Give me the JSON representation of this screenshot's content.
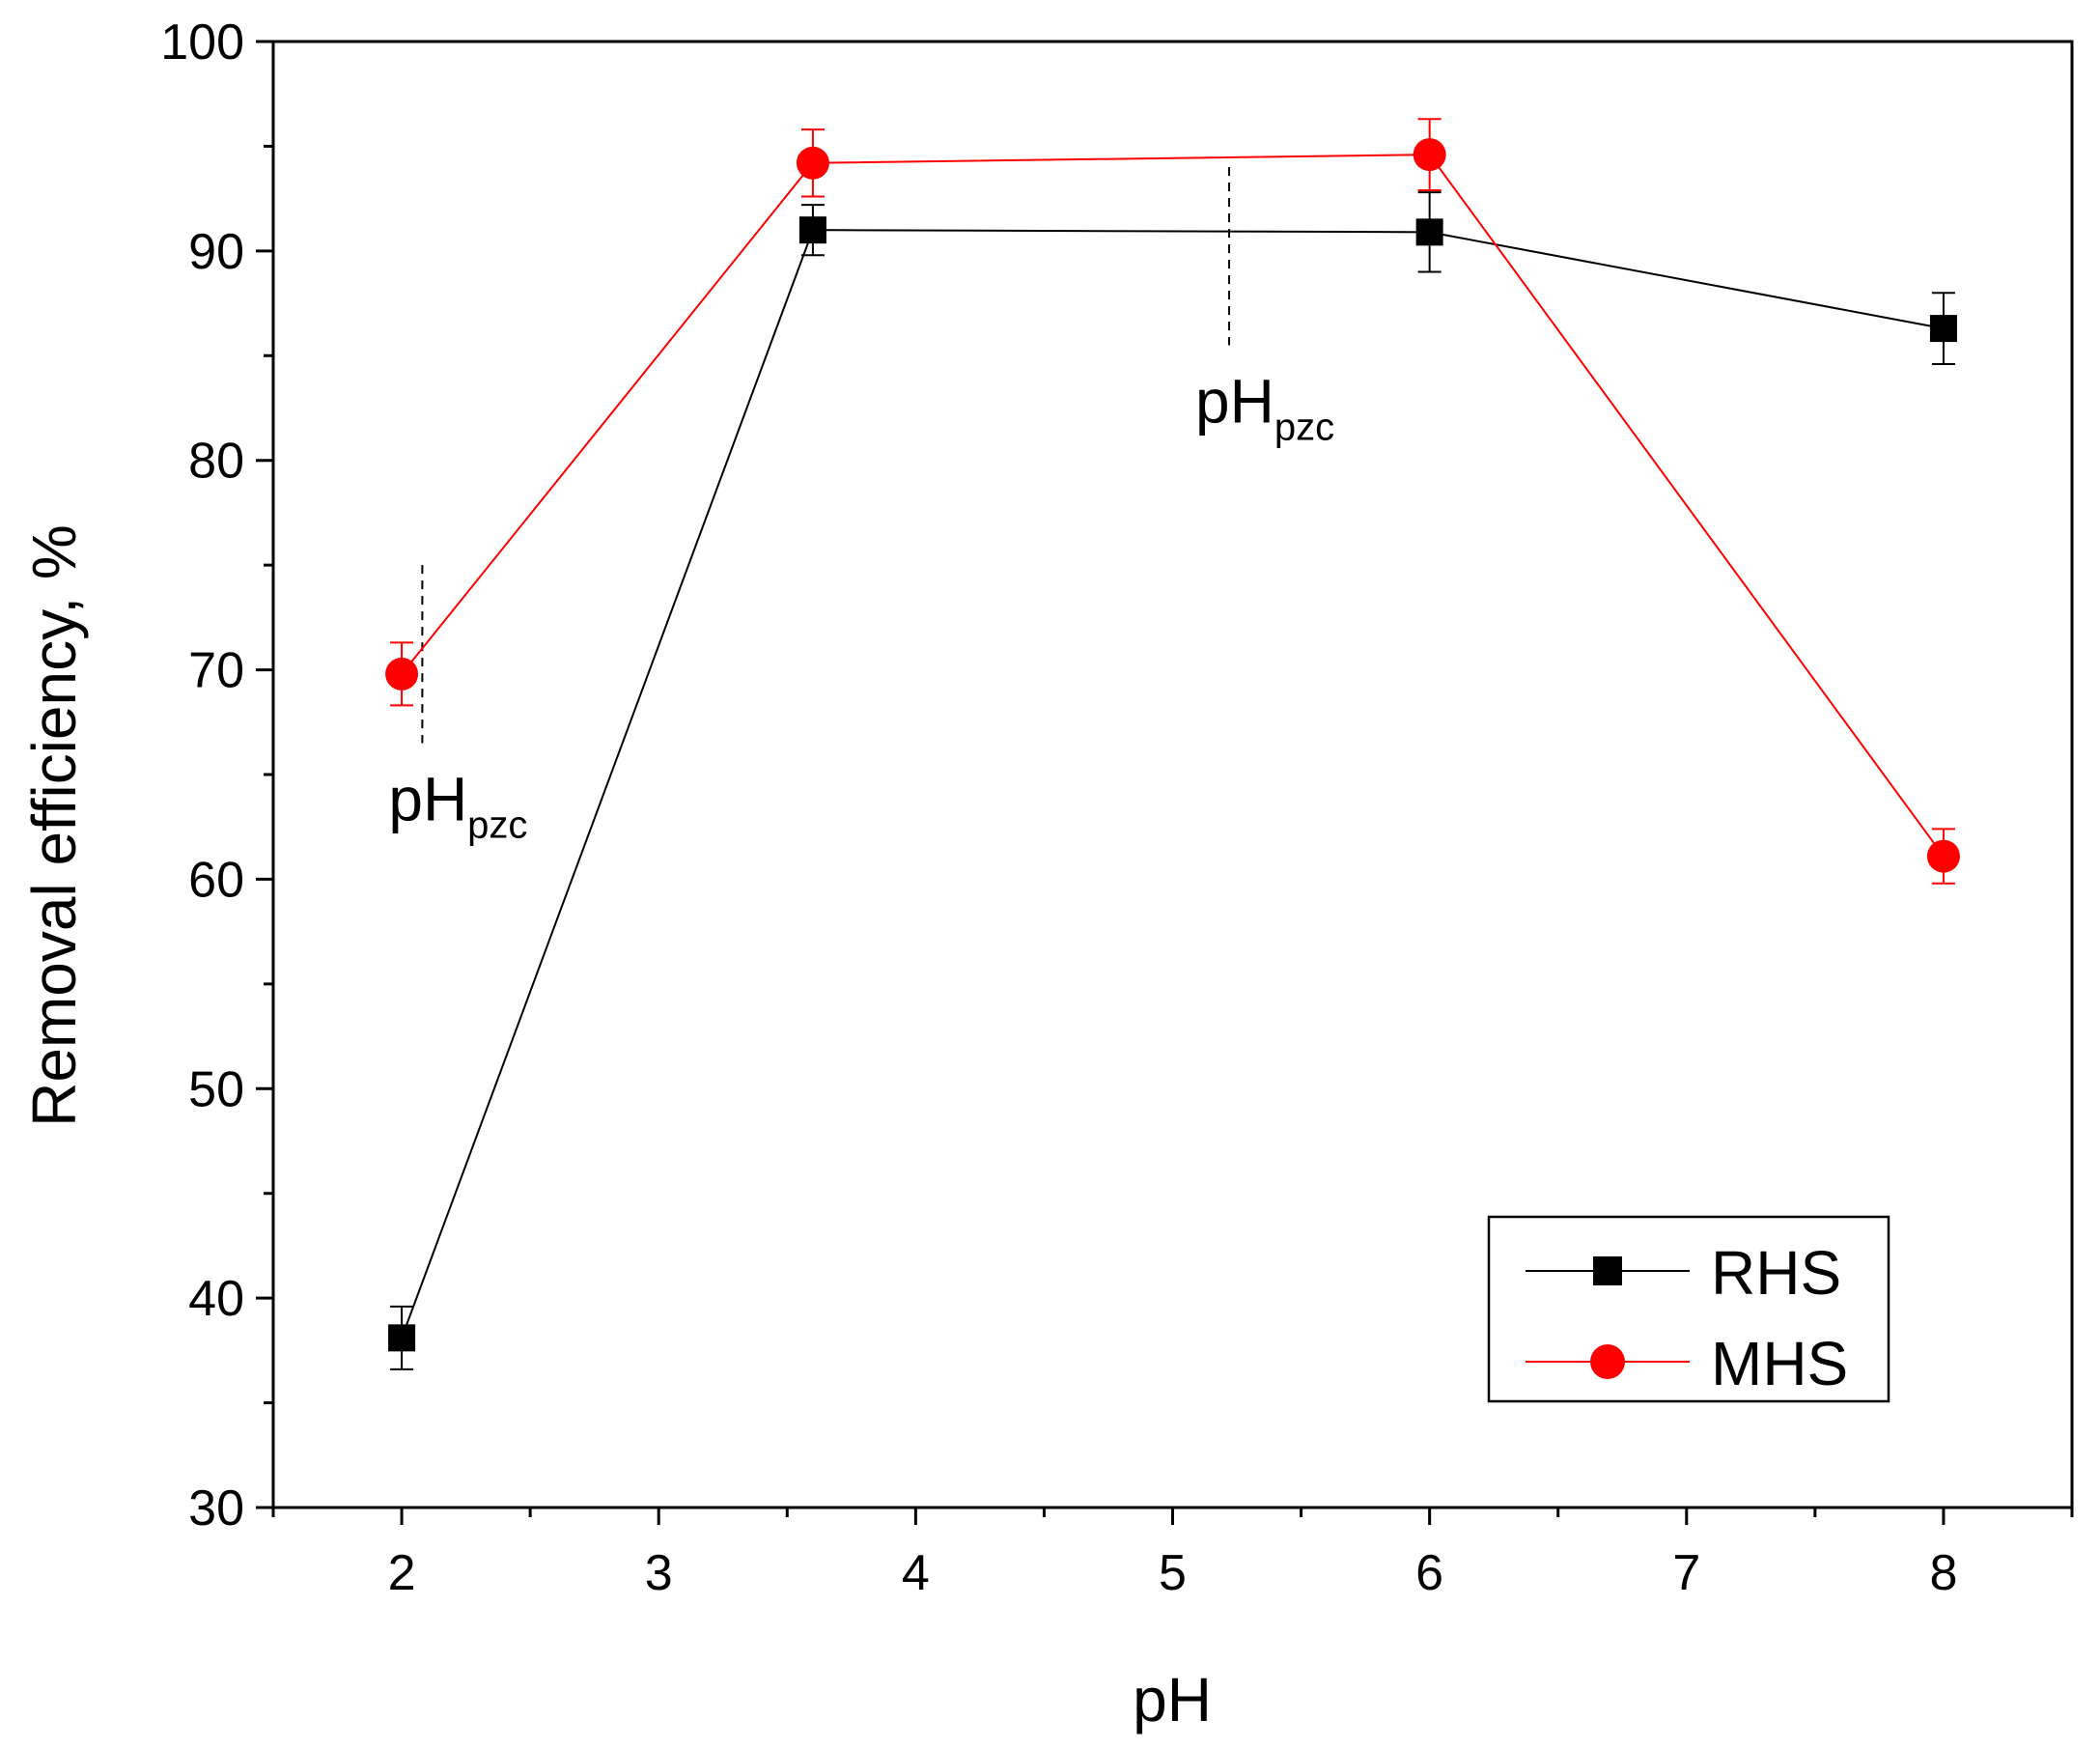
{
  "chart_data": {
    "type": "line",
    "xlabel": "pH",
    "ylabel": "Removal efficiency, %",
    "xlim": [
      1.5,
      8.5
    ],
    "ylim": [
      30,
      100
    ],
    "x_ticks": [
      "2",
      "3",
      "4",
      "5",
      "6",
      "7",
      "8"
    ],
    "y_ticks": [
      "30",
      "40",
      "50",
      "60",
      "70",
      "80",
      "90",
      "100"
    ],
    "x_minor_step": 0.5,
    "y_minor_step": 5,
    "grid": false,
    "legend_position": "bottom-right",
    "series": [
      {
        "name": "RHS",
        "color": "#000000",
        "marker": "square",
        "x": [
          2,
          3.6,
          6,
          8
        ],
        "y": [
          38.1,
          91.0,
          90.9,
          86.3
        ],
        "err": [
          1.5,
          1.2,
          1.9,
          1.7
        ]
      },
      {
        "name": "MHS",
        "color": "#ff0000",
        "marker": "circle",
        "x": [
          2,
          3.6,
          6,
          8
        ],
        "y": [
          69.8,
          94.2,
          94.6,
          61.1
        ],
        "err": [
          1.5,
          1.6,
          1.7,
          1.3
        ]
      }
    ],
    "annotations": [
      {
        "text": "pH",
        "sub": "pzc",
        "marker_x": 2.08,
        "marker_y": [
          66.5,
          75
        ]
      },
      {
        "text": "pH",
        "sub": "pzc",
        "marker_x": 5.22,
        "marker_y": [
          85.5,
          94
        ]
      }
    ]
  }
}
